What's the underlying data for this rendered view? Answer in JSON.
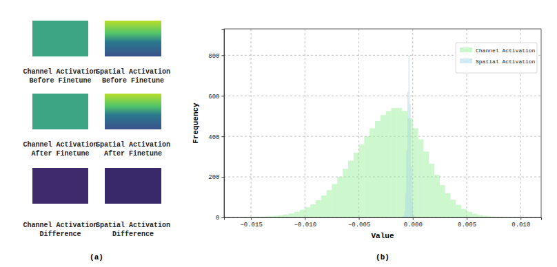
{
  "figure": {
    "panel_labels": [
      "(a)",
      "(b)"
    ]
  },
  "panel_a": {
    "images": [
      {
        "caption": [
          "Channel Activation",
          "Before Finetune"
        ]
      },
      {
        "caption": [
          "Spatial Activation",
          "Before Finetune"
        ]
      },
      {
        "caption": [
          "Channel Activation",
          "After Finetune"
        ]
      },
      {
        "caption": [
          "Spatial Activation",
          "After Finetune"
        ]
      },
      {
        "caption": [
          "Channel Activation",
          "Difference"
        ]
      },
      {
        "caption": [
          "Spatial Activation",
          "Difference"
        ]
      }
    ]
  },
  "chart_data": {
    "type": "histogram",
    "xlabel": "Value",
    "ylabel": "Frequency",
    "xlim": [
      -0.0175,
      0.0119
    ],
    "ylim": [
      0,
      930
    ],
    "xticks": [
      {
        "value": -0.015,
        "label": "−0.015"
      },
      {
        "value": -0.01,
        "label": "−0.010"
      },
      {
        "value": -0.005,
        "label": "−0.005"
      },
      {
        "value": 0,
        "label": "0.000"
      },
      {
        "value": 0.005,
        "label": "0.005"
      },
      {
        "value": 0.01,
        "label": "0.010"
      }
    ],
    "yticks": [
      0,
      200,
      400,
      600,
      800
    ],
    "grid": true,
    "legend": "upper right",
    "series": [
      {
        "name": "Channel Activation",
        "color": "#90ee90",
        "bins": [
          -0.016,
          -0.0155,
          -0.015,
          -0.0145,
          -0.014,
          -0.0135,
          -0.013,
          -0.0125,
          -0.012,
          -0.0115,
          -0.011,
          -0.0105,
          -0.01,
          -0.0095,
          -0.009,
          -0.0085,
          -0.008,
          -0.0075,
          -0.007,
          -0.0065,
          -0.006,
          -0.0055,
          -0.005,
          -0.0045,
          -0.004,
          -0.0035,
          -0.003,
          -0.0025,
          -0.002,
          -0.0015,
          -0.001,
          -0.0005,
          0,
          0.0005,
          0.001,
          0.0015,
          0.002,
          0.0025,
          0.003,
          0.0035,
          0.004,
          0.0045,
          0.005,
          0.0055,
          0.006,
          0.0065,
          0.007,
          0.0075,
          0.008,
          0.0085,
          0.009,
          0.0095,
          0.01
        ],
        "values": [
          1,
          1,
          2,
          3,
          4,
          6,
          8,
          11,
          15,
          20,
          28,
          38,
          50,
          65,
          85,
          108,
          135,
          165,
          200,
          240,
          280,
          320,
          360,
          400,
          440,
          475,
          505,
          525,
          540,
          540,
          525,
          490,
          440,
          385,
          325,
          265,
          210,
          160,
          120,
          88,
          62,
          42,
          28,
          18,
          12,
          8,
          5,
          3,
          2,
          1,
          1,
          1
        ]
      },
      {
        "name": "Spatial Activation",
        "color": "#add8e6",
        "bins": [
          -0.0009,
          -0.0008,
          -0.0007,
          -0.0006,
          -0.0005,
          -0.0004,
          -0.0003,
          -0.0002,
          -0.0001,
          0,
          0.0001,
          0.0002
        ],
        "values": [
          5,
          30,
          120,
          330,
          620,
          800,
          560,
          250,
          80,
          15,
          3
        ]
      }
    ]
  }
}
